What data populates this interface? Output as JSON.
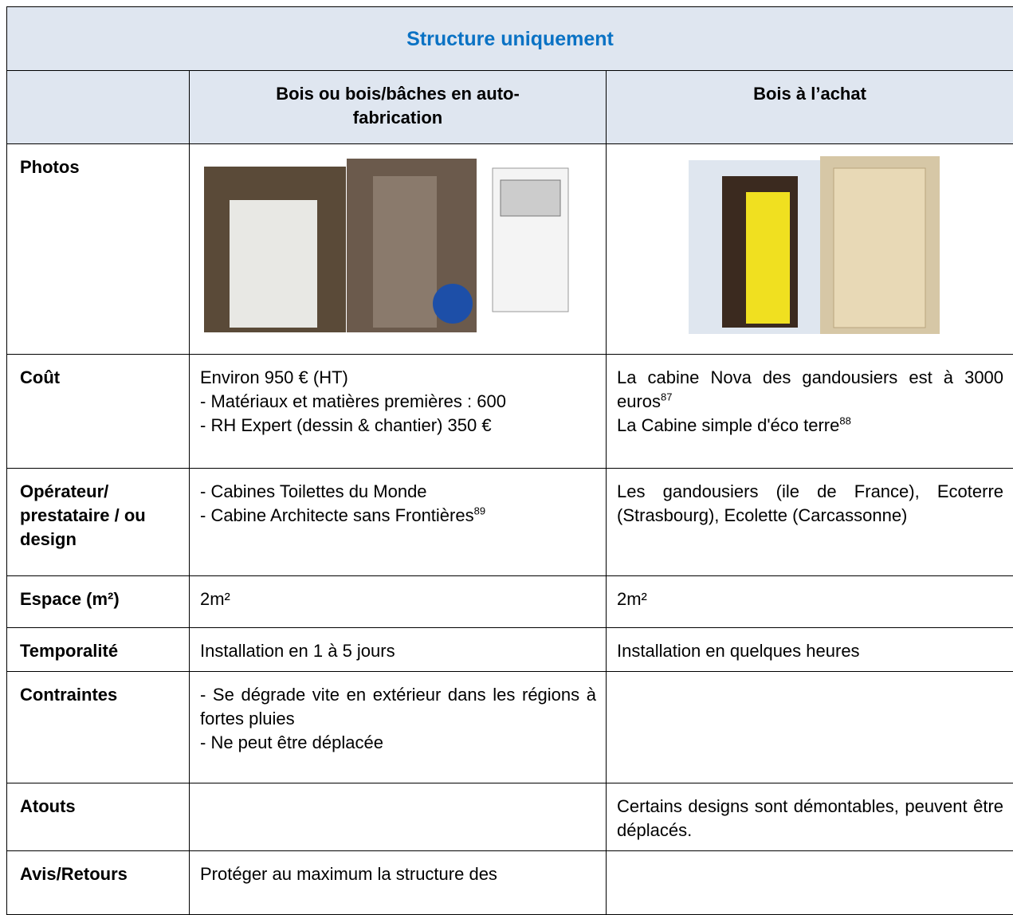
{
  "title": "Structure uniquement",
  "columns": [
    "Bois ou bois/bâches en auto-fabrication",
    "Bois à l’achat"
  ],
  "rows": [
    {
      "label": "Photos"
    },
    {
      "label": "Coût",
      "cells": [
        [
          {
            "text": "Environ 950 € (HT)"
          },
          {
            "text": "- Matériaux et matières premières : 600"
          },
          {
            "text": "- RH Expert (dessin & chantier) 350 €"
          }
        ],
        [
          {
            "text": "La cabine Nova des gandousiers est à 3000 euros",
            "sup": "87"
          },
          {
            "text": "La Cabine simple d'éco terre",
            "sup": "88"
          }
        ]
      ]
    },
    {
      "label": "Opérateur/ prestataire / ou design",
      "cells": [
        [
          {
            "text": "- Cabines Toilettes du Monde"
          },
          {
            "text": "- Cabine Architecte sans Frontières",
            "sup": "89"
          }
        ],
        [
          {
            "text": "Les gandousiers (ile de France), Ecoterre (Strasbourg), Ecolette (Carcassonne)"
          }
        ]
      ]
    },
    {
      "label": "Espace (m²)",
      "cells": [
        [
          {
            "text": "2m²"
          }
        ],
        [
          {
            "text": "2m²"
          }
        ]
      ]
    },
    {
      "label": "Temporalité",
      "cells": [
        [
          {
            "text": "Installation en 1 à 5 jours"
          }
        ],
        [
          {
            "text": "Installation en quelques heures"
          }
        ]
      ]
    },
    {
      "label": "Contraintes",
      "cells": [
        [
          {
            "text": "- Se dégrade vite en extérieur dans les régions à fortes pluies"
          },
          {
            "text": "- Ne peut être déplacée"
          }
        ],
        []
      ]
    },
    {
      "label": "Atouts",
      "cells": [
        [],
        [
          {
            "text": "Certains designs sont démontables, peuvent être déplacés."
          }
        ]
      ]
    },
    {
      "label": "Avis/Retours",
      "cells": [
        [
          {
            "text": "Protéger au maximum la structure des"
          }
        ],
        []
      ]
    }
  ]
}
